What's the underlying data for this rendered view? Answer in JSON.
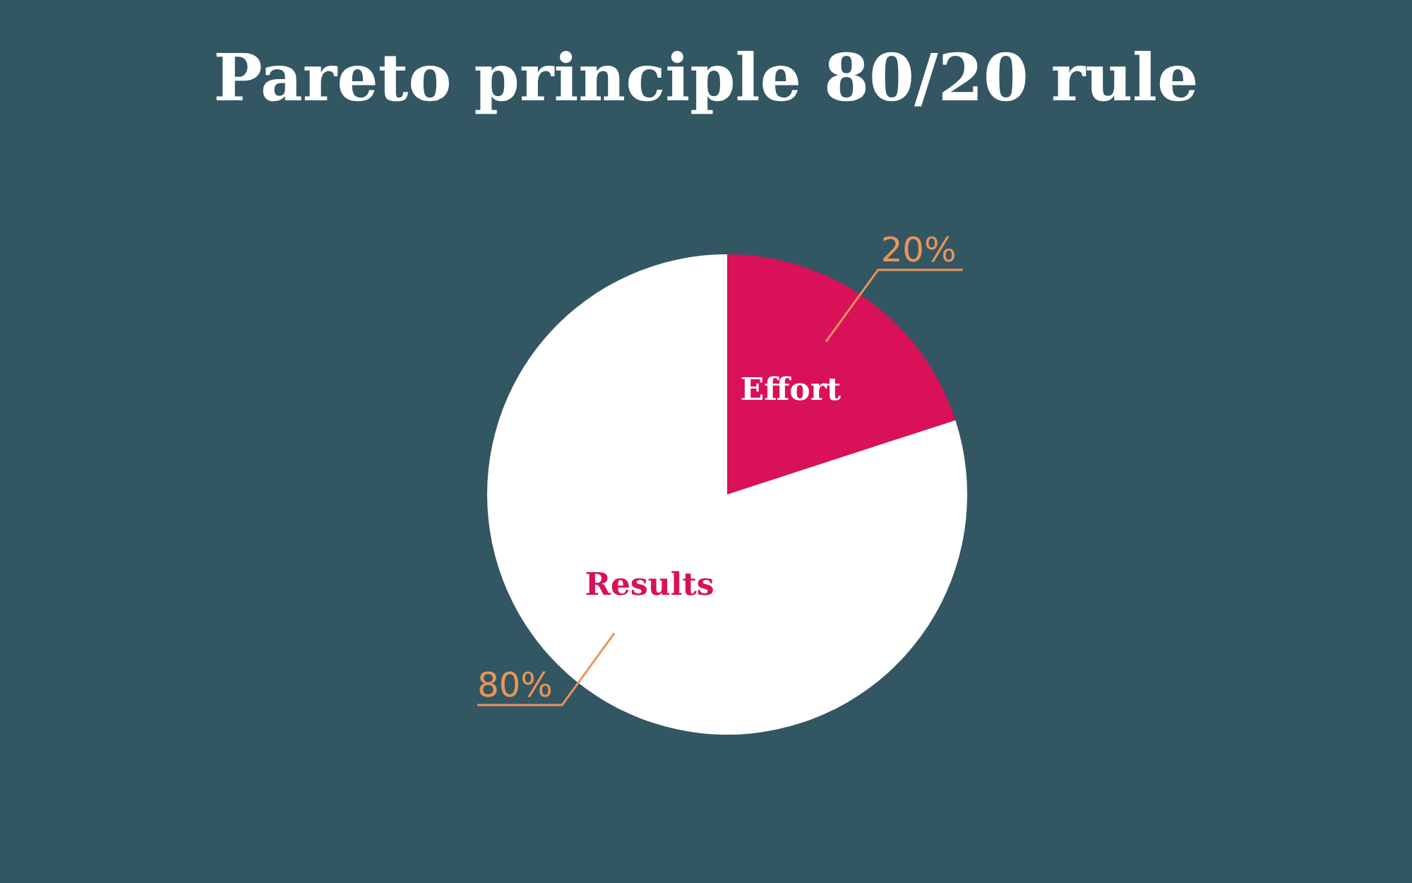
{
  "chart_data": {
    "type": "pie",
    "title": "Pareto principle 80/20 rule",
    "categories": [
      "Effort",
      "Results"
    ],
    "values": [
      20,
      80
    ],
    "colors": [
      "#d81159",
      "#ffffff"
    ],
    "value_labels": [
      "20%",
      "80%"
    ]
  }
}
